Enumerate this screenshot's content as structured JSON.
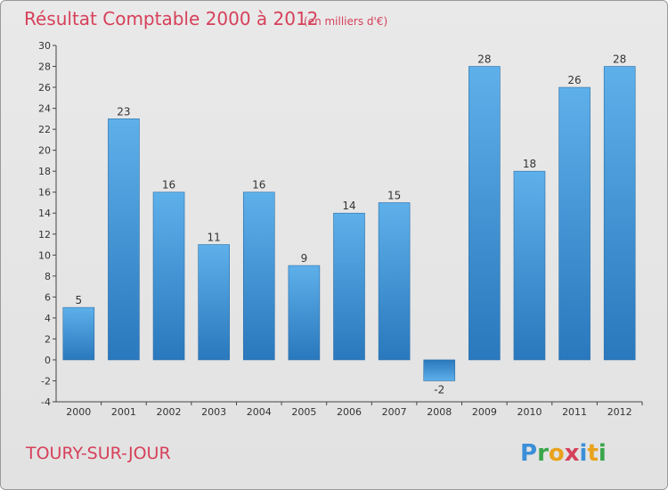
{
  "chart_data": {
    "type": "bar",
    "title": "Résultat Comptable 2000 à 2012",
    "subtitle": "(en milliers d'€)",
    "categories": [
      "2000",
      "2001",
      "2002",
      "2003",
      "2004",
      "2005",
      "2006",
      "2007",
      "2008",
      "2009",
      "2010",
      "2011",
      "2012"
    ],
    "values": [
      5,
      23,
      16,
      11,
      16,
      9,
      14,
      15,
      -2,
      28,
      18,
      26,
      28
    ],
    "ylim": [
      -4,
      30
    ],
    "yticks": [
      -4,
      -2,
      0,
      2,
      4,
      6,
      8,
      10,
      12,
      14,
      16,
      18,
      20,
      22,
      24,
      26,
      28,
      30
    ],
    "grid": false,
    "bar_color": "#3a8fd6"
  },
  "footer": {
    "commune": "TOURY-SUR-JOUR",
    "logo_text": "Proxiti"
  },
  "colors": {
    "accent": "#d6405a",
    "bar_top": "#5aaee8",
    "bar_bottom": "#2d7bc0"
  }
}
